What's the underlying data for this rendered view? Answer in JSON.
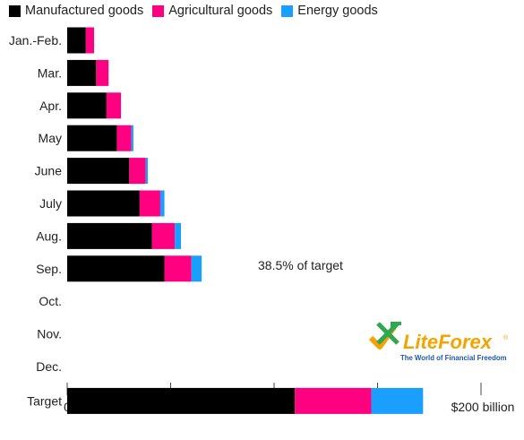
{
  "chart_data": {
    "type": "bar",
    "orientation": "horizontal",
    "stacked": true,
    "categories": [
      "Jan.-Feb.",
      "Mar.",
      "Apr.",
      "May",
      "June",
      "July",
      "Aug.",
      "Sep.",
      "Oct.",
      "Nov.",
      "Dec.",
      "Target"
    ],
    "series": [
      {
        "name": "Manufactured goods",
        "color": "#000000",
        "values": [
          9,
          14,
          19,
          24,
          30,
          35,
          41,
          47,
          null,
          null,
          null,
          110
        ]
      },
      {
        "name": "Agricultural goods",
        "color": "#ff0080",
        "values": [
          4,
          6,
          7,
          7,
          8,
          10,
          11,
          13,
          null,
          null,
          null,
          37
        ]
      },
      {
        "name": "Energy goods",
        "color": "#1a9fff",
        "values": [
          0,
          0,
          0,
          1,
          1,
          2,
          3,
          5,
          null,
          null,
          null,
          25
        ]
      }
    ],
    "xlim": [
      0,
      200
    ],
    "x_ticks": [
      0,
      50,
      100,
      150,
      200
    ],
    "x_tick_labels": [
      "0",
      "50",
      "100",
      "150",
      "$200 billion"
    ],
    "legend_position": "top-left",
    "annotation": "38.5% of target"
  },
  "logo": {
    "name": "LiteForex",
    "tagline": "The World of Financial Freedom",
    "registered": "®"
  },
  "colors": {
    "manufactured": "#000000",
    "agricultural": "#ff0080",
    "energy": "#1a9fff",
    "axis": "#222222"
  }
}
